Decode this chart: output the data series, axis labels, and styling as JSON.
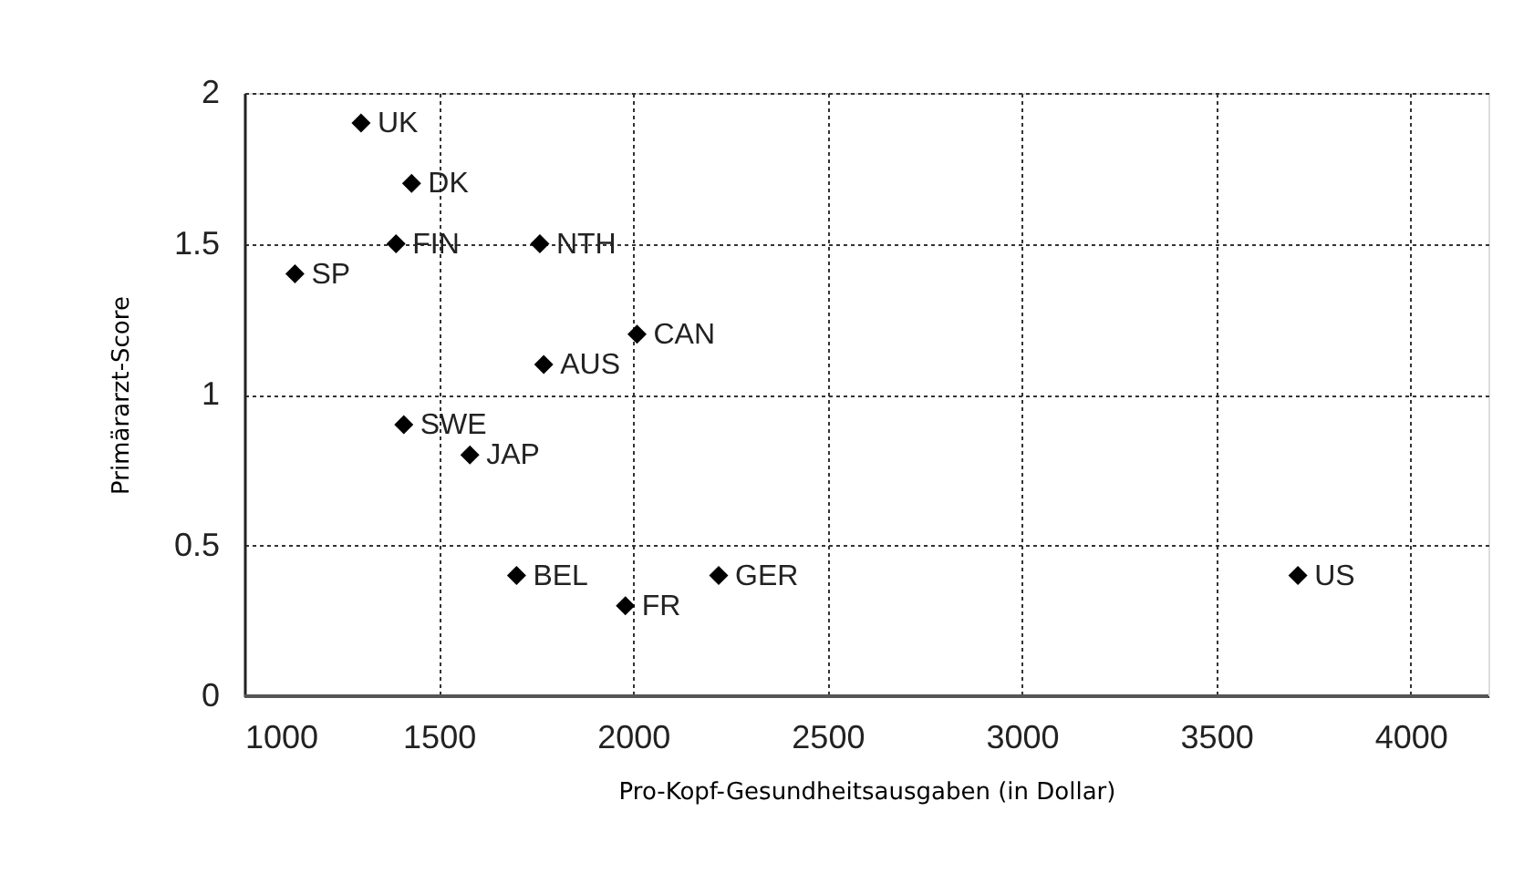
{
  "chart_data": {
    "type": "scatter",
    "xlabel": "Pro-Kopf-Gesundheitsausgaben (in Dollar)",
    "ylabel": "Primärarzt-Score",
    "x": [
      1300,
      1430,
      1390,
      1760,
      1130,
      2010,
      1770,
      1410,
      1580,
      1700,
      1980,
      2220,
      3710
    ],
    "values": [
      1.9,
      1.7,
      1.5,
      1.5,
      1.4,
      1.2,
      1.1,
      0.9,
      0.8,
      0.4,
      0.3,
      0.4,
      0.4
    ],
    "color": "#000000",
    "marker": "diamond",
    "annotations": [
      {
        "text": "UK",
        "x": 1300,
        "y": 1.9
      },
      {
        "text": "DK",
        "x": 1430,
        "y": 1.7
      },
      {
        "text": "FIN",
        "x": 1390,
        "y": 1.5
      },
      {
        "text": "NTH",
        "x": 1760,
        "y": 1.5
      },
      {
        "text": "SP",
        "x": 1130,
        "y": 1.4
      },
      {
        "text": "CAN",
        "x": 2010,
        "y": 1.2
      },
      {
        "text": "AUS",
        "x": 1770,
        "y": 1.1
      },
      {
        "text": "SWE",
        "x": 1410,
        "y": 0.9
      },
      {
        "text": "JAP",
        "x": 1580,
        "y": 0.8
      },
      {
        "text": "BEL",
        "x": 1700,
        "y": 0.4
      },
      {
        "text": "FR",
        "x": 1980,
        "y": 0.3
      },
      {
        "text": "GER",
        "x": 2220,
        "y": 0.4
      },
      {
        "text": "US",
        "x": 3710,
        "y": 0.4
      }
    ],
    "xlim": [
      1000,
      4200
    ],
    "xticks": [
      1000,
      1500,
      2000,
      2500,
      3000,
      3500,
      4000
    ],
    "ylim": [
      0,
      2
    ],
    "yticks": [
      0,
      0.5,
      1,
      1.5,
      2
    ],
    "grid": true
  }
}
